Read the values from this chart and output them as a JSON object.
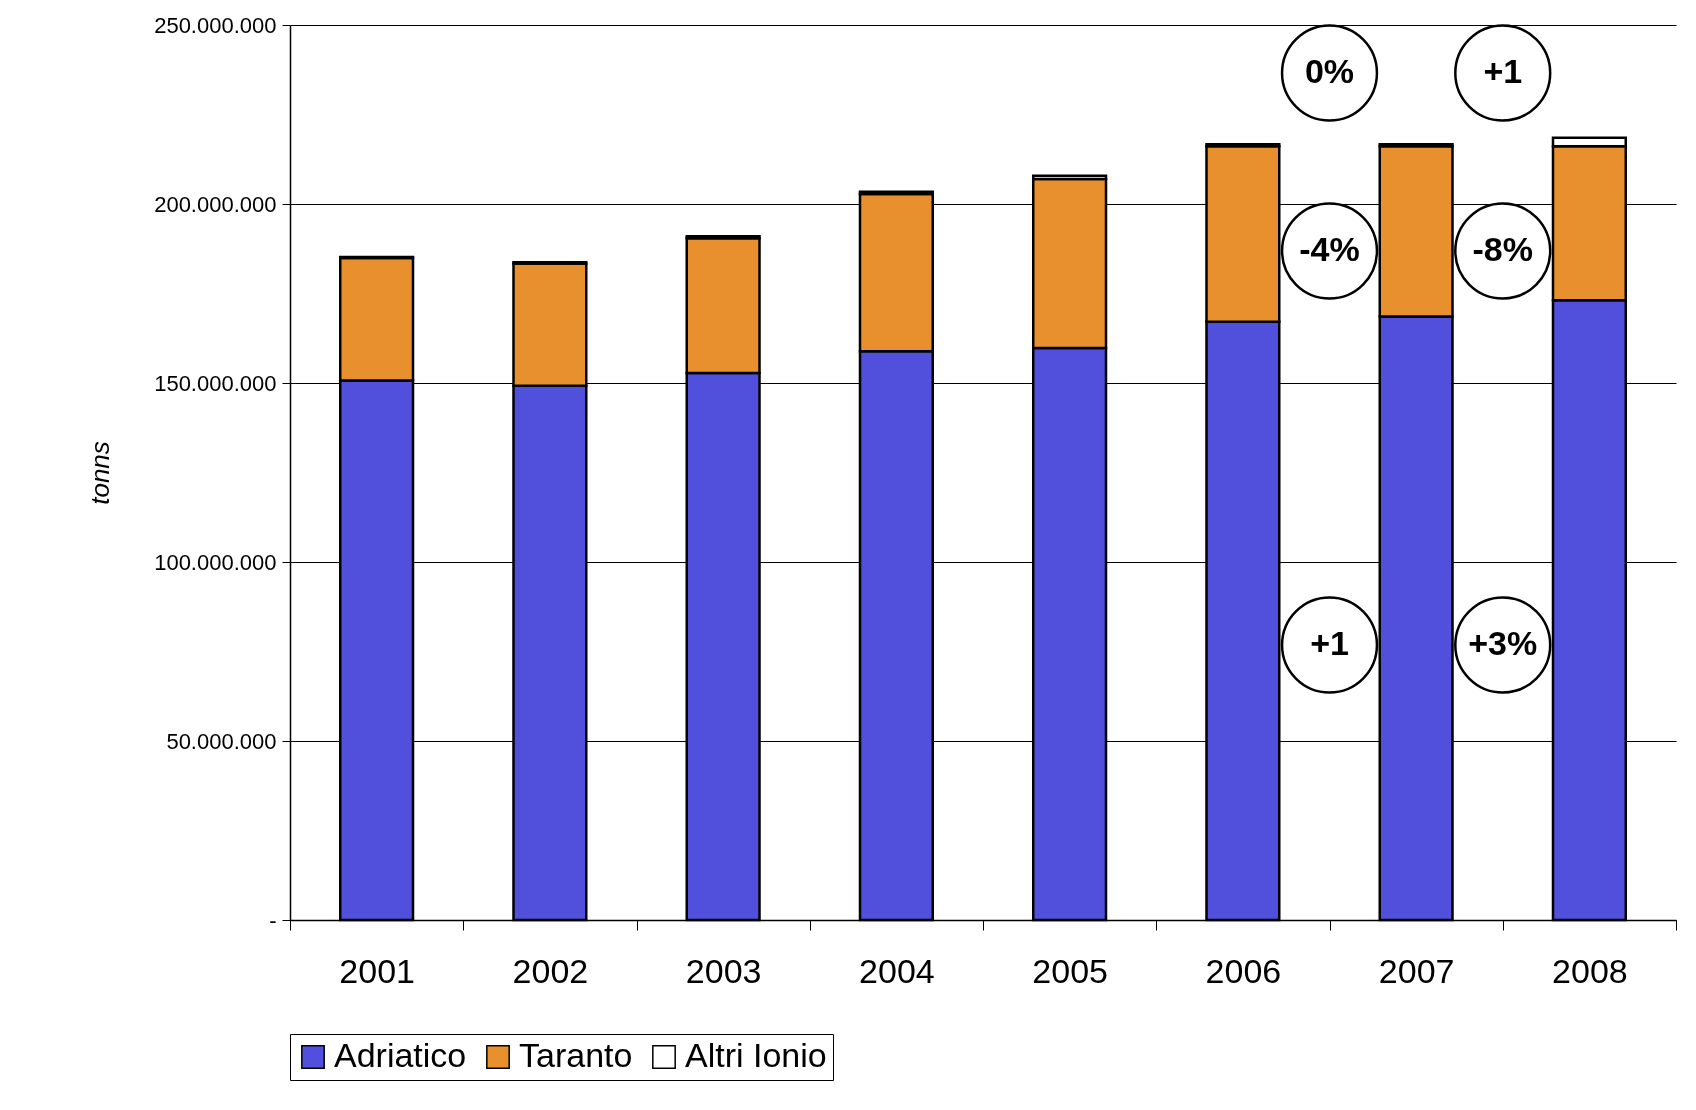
{
  "chart_data": {
    "type": "bar",
    "stacked": true,
    "ylabel": "tonns",
    "categories": [
      "2001",
      "2002",
      "2003",
      "2004",
      "2005",
      "2006",
      "2007",
      "2008"
    ],
    "series": [
      {
        "name": "Adriatico",
        "color": "#5050dc",
        "values": [
          150700000,
          149200000,
          152800000,
          158900000,
          159800000,
          167100000,
          168600000,
          173100000
        ]
      },
      {
        "name": "Taranto",
        "color": "#e8902e",
        "values": [
          34200000,
          34200000,
          37600000,
          43900000,
          47200000,
          49000000,
          47500000,
          43000000
        ]
      },
      {
        "name": "Altri Ionio",
        "color": "#ffffff",
        "values": [
          300000,
          300000,
          600000,
          600000,
          900000,
          600000,
          600000,
          2400000
        ]
      }
    ],
    "ylim": [
      0,
      250000000
    ],
    "yticks": [
      {
        "value": 0,
        "label": "-"
      },
      {
        "value": 50000000,
        "label": "50.000.000"
      },
      {
        "value": 100000000,
        "label": "100.000.000"
      },
      {
        "value": 150000000,
        "label": "150.000.000"
      },
      {
        "value": 200000000,
        "label": "200.000.000"
      },
      {
        "value": 250000000,
        "label": "250.000.000"
      }
    ],
    "grid": "y",
    "legend": "bottom",
    "annotations": [
      "0%",
      "+1",
      "-4%",
      "-8%",
      "+1",
      "+3%"
    ]
  }
}
